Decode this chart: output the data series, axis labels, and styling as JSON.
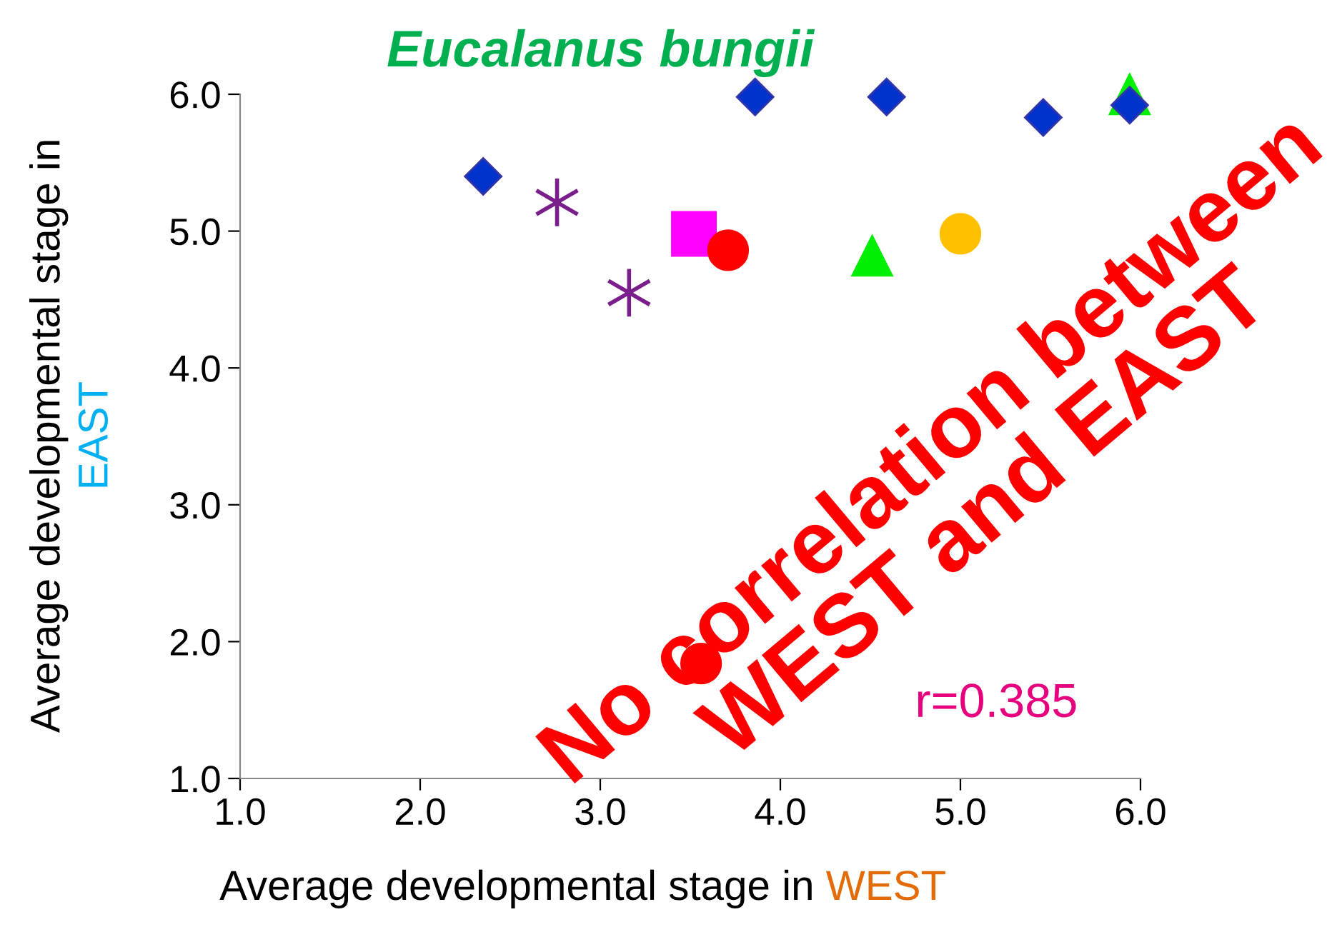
{
  "chart_data": {
    "type": "scatter",
    "title": "Eucalanus bungii",
    "xlabel": "Average developmental stage in WEST",
    "ylabel": "Average developmental stage in EAST",
    "xlim": [
      1,
      6
    ],
    "ylim": [
      1,
      6
    ],
    "xticks": [
      {
        "value": 1,
        "label": "1.0"
      },
      {
        "value": 2,
        "label": "2.0"
      },
      {
        "value": 3,
        "label": "3.0"
      },
      {
        "value": 4,
        "label": "4.0"
      },
      {
        "value": 5,
        "label": "5.0"
      },
      {
        "value": 6,
        "label": "6.0"
      }
    ],
    "yticks": [
      {
        "value": 1,
        "label": "1.0"
      },
      {
        "value": 2,
        "label": "2.0"
      },
      {
        "value": 3,
        "label": "3.0"
      },
      {
        "value": 4,
        "label": "4.0"
      },
      {
        "value": 5,
        "label": "5.0"
      },
      {
        "value": 6,
        "label": "6.0"
      }
    ],
    "grid": false,
    "legend": false,
    "series": [
      {
        "color": "#0033cc",
        "marker": "diamond",
        "x": [
          2.35,
          3.86,
          4.59,
          5.46,
          5.94
        ],
        "values": [
          5.4,
          5.98,
          5.98,
          5.83,
          5.92
        ]
      },
      {
        "color": "#7a1e8c",
        "marker": "cross",
        "x": [
          2.76,
          3.16
        ],
        "values": [
          5.21,
          4.55
        ]
      },
      {
        "color": "#ff00ff",
        "marker": "square",
        "x": [
          3.52
        ],
        "values": [
          4.98
        ]
      },
      {
        "color": "#ff0000",
        "marker": "circle",
        "x": [
          3.71,
          3.56
        ],
        "values": [
          4.86,
          1.84
        ]
      },
      {
        "color": "#00ee00",
        "marker": "triangle",
        "x": [
          4.51,
          5.94
        ],
        "values": [
          4.82,
          6.0
        ]
      },
      {
        "color": "#ffc000",
        "marker": "circle",
        "x": [
          5.0
        ],
        "values": [
          4.98
        ]
      }
    ],
    "annotations": [
      "r=0.385",
      "No correlation between\nWEST and EAST"
    ]
  }
}
